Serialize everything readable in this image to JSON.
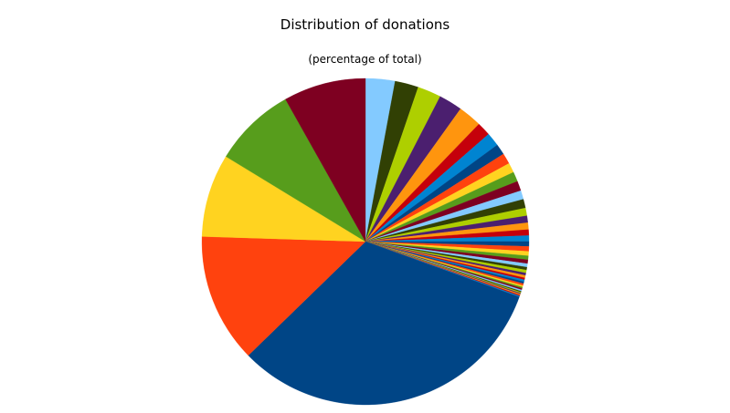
{
  "chart_data": {
    "type": "pie",
    "title": "Distribution of donations",
    "subtitle": "(percentage of total)",
    "start_angle_deg": 0,
    "direction": "clockwise",
    "slices": [
      {
        "value": 3.0,
        "color": "#83caff"
      },
      {
        "value": 2.4,
        "color": "#314004"
      },
      {
        "value": 2.4,
        "color": "#aecf00"
      },
      {
        "value": 2.4,
        "color": "#4b1f6f"
      },
      {
        "value": 2.4,
        "color": "#ff950e"
      },
      {
        "value": 1.4,
        "color": "#c5000b"
      },
      {
        "value": 1.4,
        "color": "#0084d1"
      },
      {
        "value": 1.1,
        "color": "#004586"
      },
      {
        "value": 1.1,
        "color": "#ff420e"
      },
      {
        "value": 1.0,
        "color": "#ffd320"
      },
      {
        "value": 1.0,
        "color": "#579d1c"
      },
      {
        "value": 1.0,
        "color": "#7e0021"
      },
      {
        "value": 0.9,
        "color": "#83caff"
      },
      {
        "value": 0.9,
        "color": "#314004"
      },
      {
        "value": 0.8,
        "color": "#aecf00"
      },
      {
        "value": 0.7,
        "color": "#4b1f6f"
      },
      {
        "value": 0.7,
        "color": "#ff950e"
      },
      {
        "value": 0.6,
        "color": "#c5000b"
      },
      {
        "value": 0.6,
        "color": "#0084d1"
      },
      {
        "value": 0.5,
        "color": "#004586"
      },
      {
        "value": 0.5,
        "color": "#ff420e"
      },
      {
        "value": 0.45,
        "color": "#ffd320"
      },
      {
        "value": 0.4,
        "color": "#579d1c"
      },
      {
        "value": 0.4,
        "color": "#7e0021"
      },
      {
        "value": 0.35,
        "color": "#83caff"
      },
      {
        "value": 0.3,
        "color": "#314004"
      },
      {
        "value": 0.3,
        "color": "#aecf00"
      },
      {
        "value": 0.25,
        "color": "#4b1f6f"
      },
      {
        "value": 0.25,
        "color": "#ff950e"
      },
      {
        "value": 0.2,
        "color": "#c5000b"
      },
      {
        "value": 0.2,
        "color": "#0084d1"
      },
      {
        "value": 0.2,
        "color": "#004586"
      },
      {
        "value": 0.2,
        "color": "#ff420e"
      },
      {
        "value": 0.15,
        "color": "#ffd320"
      },
      {
        "value": 0.15,
        "color": "#579d1c"
      },
      {
        "value": 0.15,
        "color": "#7e0021"
      },
      {
        "value": 0.15,
        "color": "#83caff"
      },
      {
        "value": 0.1,
        "color": "#314004"
      },
      {
        "value": 0.1,
        "color": "#aecf00"
      },
      {
        "value": 0.1,
        "color": "#4b1f6f"
      },
      {
        "value": 0.1,
        "color": "#ff950e"
      },
      {
        "value": 0.1,
        "color": "#c5000b"
      },
      {
        "value": 0.1,
        "color": "#0084d1"
      },
      {
        "value": 33.25,
        "color": "#004586"
      },
      {
        "value": 13.2,
        "color": "#ff420e"
      },
      {
        "value": 8.5,
        "color": "#ffd320"
      },
      {
        "value": 8.4,
        "color": "#579d1c"
      },
      {
        "value": 8.4,
        "color": "#7e0021"
      }
    ]
  }
}
